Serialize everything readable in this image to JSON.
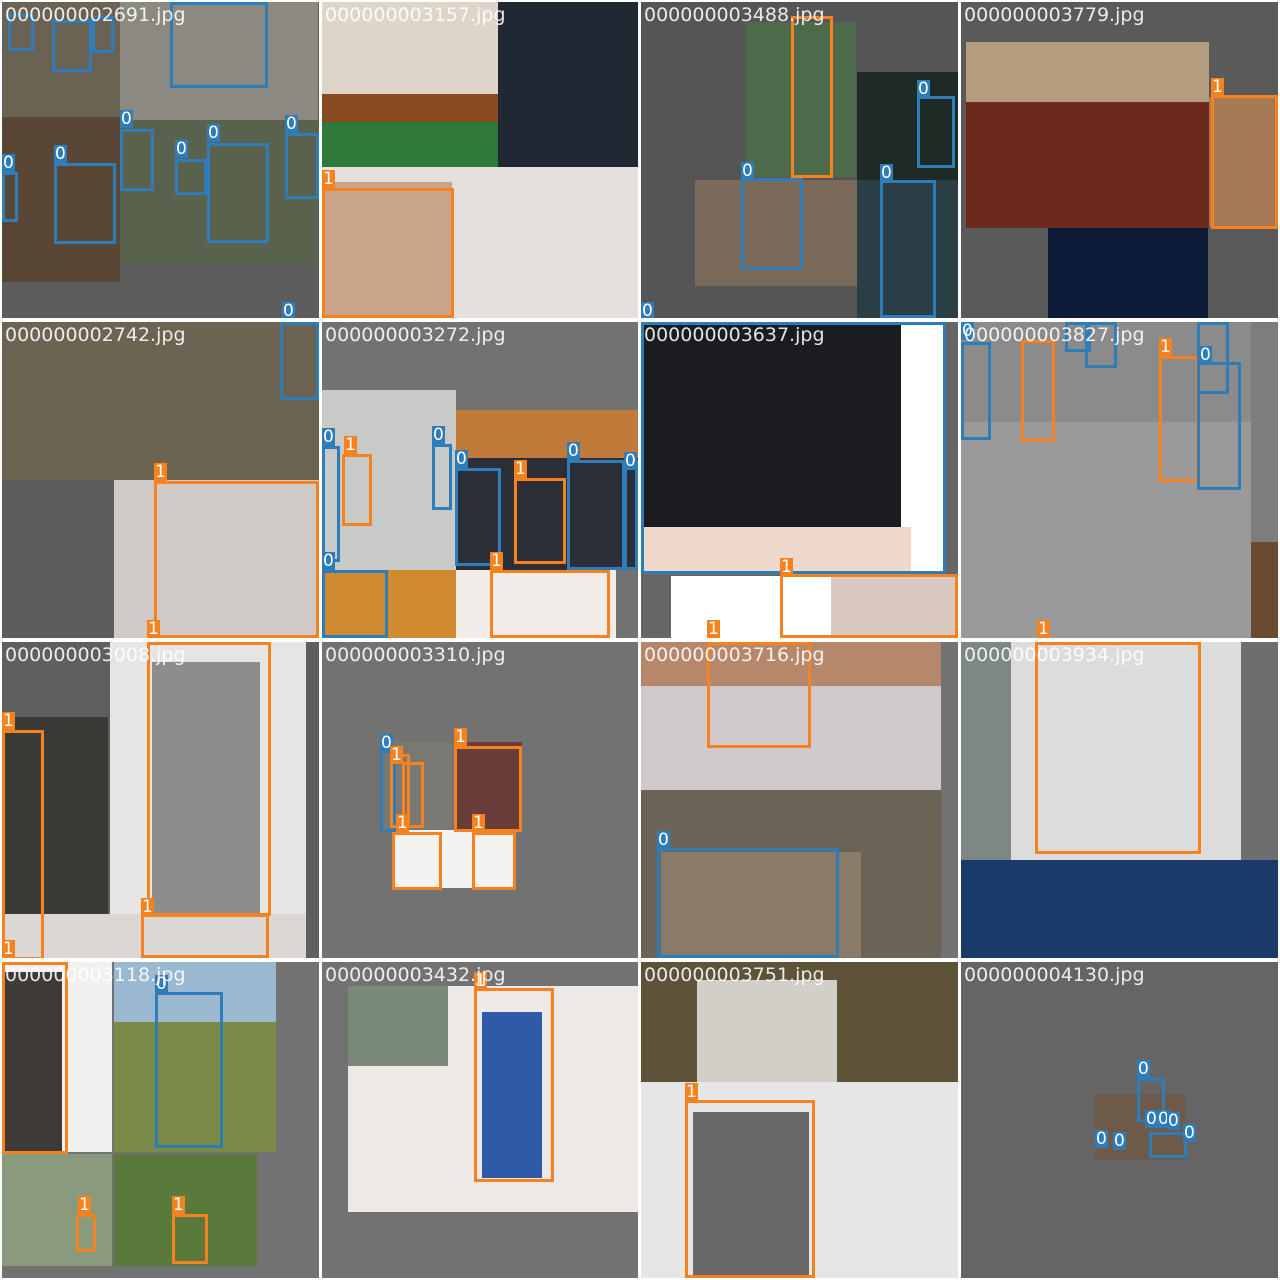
{
  "colors": {
    "class_0": "#2e7db9",
    "class_1": "#f5821f",
    "pad": "#727272",
    "separator": "#ffffff"
  },
  "class_labels": [
    "0",
    "1"
  ],
  "tiles": [
    {
      "filename": "000000002691.jpg"
    },
    {
      "filename": "000000003157.jpg"
    },
    {
      "filename": "000000003488.jpg"
    },
    {
      "filename": "000000003779.jpg"
    },
    {
      "filename": "000000002742.jpg"
    },
    {
      "filename": "000000003272.jpg"
    },
    {
      "filename": "000000003637.jpg"
    },
    {
      "filename": "000000003827.jpg"
    },
    {
      "filename": "000000003008.jpg"
    },
    {
      "filename": "000000003310.jpg"
    },
    {
      "filename": "000000003716.jpg"
    },
    {
      "filename": "000000003934.jpg"
    },
    {
      "filename": "000000003118.jpg"
    },
    {
      "filename": "000000003432.jpg"
    },
    {
      "filename": "000000003751.jpg"
    },
    {
      "filename": "000000004130.jpg"
    }
  ]
}
